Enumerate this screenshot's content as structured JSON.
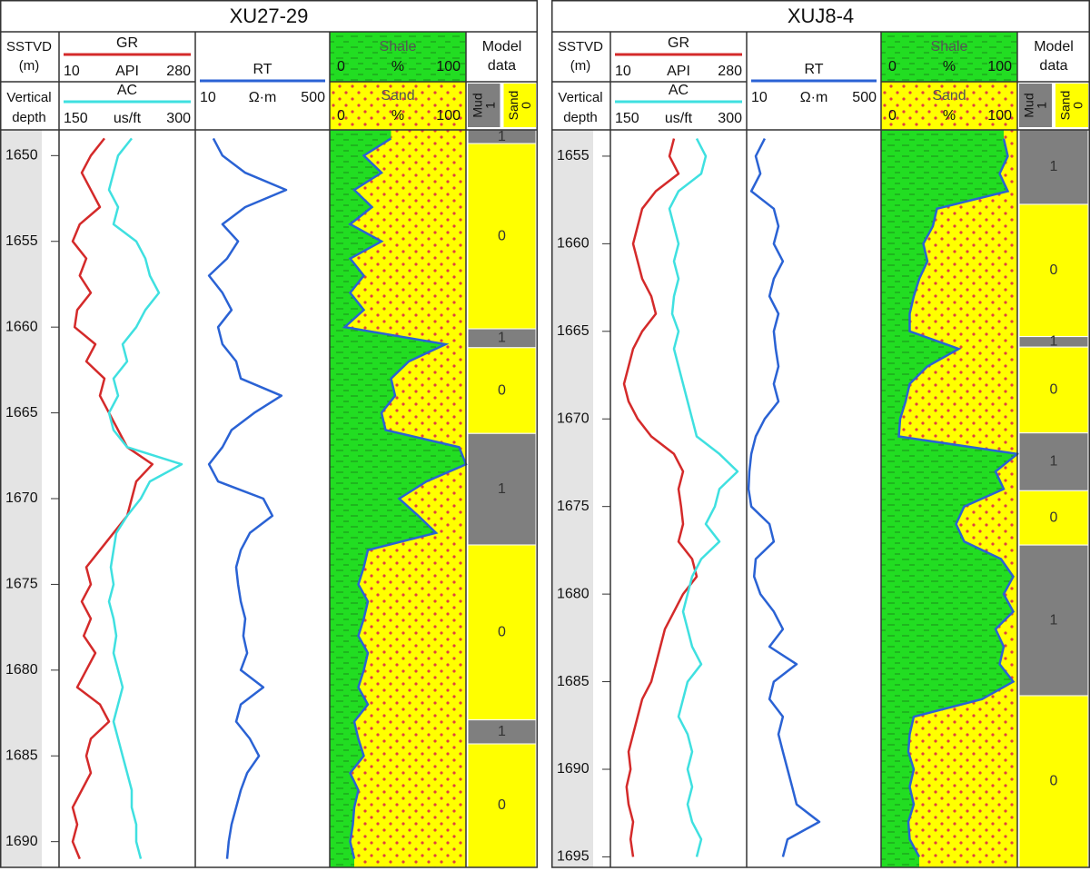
{
  "chart_data": [
    {
      "type": "well_log",
      "title": "XU27-29",
      "depth_header": [
        "SSTVD",
        "(m)"
      ],
      "depth_header2": [
        "Vertical",
        "depth"
      ],
      "ylim": [
        1648.5,
        1691.5
      ],
      "yticks": [
        1650,
        1655,
        1660,
        1665,
        1670,
        1675,
        1680,
        1685,
        1690
      ],
      "x": [
        1649,
        1650,
        1651,
        1652,
        1653,
        1654,
        1655,
        1656,
        1657,
        1658,
        1659,
        1660,
        1661,
        1662,
        1663,
        1664,
        1665,
        1666,
        1667,
        1668,
        1669,
        1670,
        1671,
        1672,
        1673,
        1674,
        1675,
        1676,
        1677,
        1678,
        1679,
        1680,
        1681,
        1682,
        1683,
        1684,
        1685,
        1686,
        1687,
        1688,
        1689,
        1690,
        1691
      ],
      "series": [
        {
          "name": "GR",
          "color": "#d42a2a",
          "unit": "API",
          "xlim": [
            10,
            280
          ],
          "values": [
            100,
            73,
            55,
            73,
            91,
            51,
            37,
            64,
            51,
            73,
            46,
            41,
            82,
            64,
            100,
            91,
            109,
            127,
            145,
            195,
            163,
            154,
            145,
            118,
            91,
            64,
            73,
            55,
            73,
            59,
            82,
            64,
            46,
            91,
            109,
            73,
            64,
            73,
            55,
            37,
            46,
            37,
            51
          ]
        },
        {
          "name": "AC",
          "color": "#3fe0e0",
          "unit": "us/ft",
          "xlim": [
            150,
            300
          ],
          "values": [
            230,
            215,
            210,
            205,
            215,
            210,
            235,
            245,
            250,
            260,
            245,
            235,
            220,
            225,
            210,
            215,
            205,
            210,
            225,
            285,
            250,
            240,
            225,
            213,
            210,
            207,
            210,
            205,
            210,
            213,
            210,
            215,
            220,
            215,
            210,
            215,
            220,
            225,
            230,
            230,
            235,
            235,
            240
          ]
        },
        {
          "name": "RT",
          "color": "#2a62d4",
          "unit": "Ω·m",
          "xlim": [
            10,
            500
          ],
          "values": [
            76,
            109,
            192,
            341,
            192,
            109,
            166,
            126,
            60,
            109,
            142,
            93,
            109,
            159,
            176,
            324,
            225,
            142,
            109,
            60,
            93,
            258,
            291,
            209,
            176,
            159,
            166,
            176,
            192,
            185,
            199,
            176,
            258,
            176,
            159,
            209,
            242,
            199,
            176,
            159,
            142,
            132,
            126
          ]
        }
      ],
      "lithology": {
        "shale": {
          "name": "Shale",
          "color": "#22dd22",
          "unit": "%",
          "xlim": [
            0,
            100
          ]
        },
        "sand": {
          "name": "Sand",
          "color": "#ffff00",
          "unit": "%",
          "xlim": [
            0,
            100
          ]
        },
        "line_color": "#2a62d4",
        "values": [
          45,
          25,
          38,
          18,
          31,
          15,
          38,
          15,
          25,
          15,
          25,
          11,
          85,
          58,
          45,
          48,
          38,
          41,
          95,
          100,
          71,
          51,
          65,
          78,
          28,
          25,
          21,
          28,
          25,
          21,
          28,
          25,
          21,
          28,
          18,
          21,
          25,
          15,
          21,
          18,
          17,
          15,
          18
        ]
      },
      "model": {
        "title": [
          "Model",
          "data"
        ],
        "classes": [
          {
            "name": "Mud",
            "value": 1,
            "color": "#7f7f7f"
          },
          {
            "name": "Sand",
            "value": 0,
            "color": "#ffff00"
          }
        ],
        "intervals": [
          {
            "top": 1648.5,
            "bottom": 1649.3,
            "value": 1
          },
          {
            "top": 1649.3,
            "bottom": 1660.1,
            "value": 0
          },
          {
            "top": 1660.1,
            "bottom": 1661.2,
            "value": 1
          },
          {
            "top": 1661.2,
            "bottom": 1666.2,
            "value": 0
          },
          {
            "top": 1666.2,
            "bottom": 1672.7,
            "value": 1
          },
          {
            "top": 1672.7,
            "bottom": 1682.9,
            "value": 0
          },
          {
            "top": 1682.9,
            "bottom": 1684.3,
            "value": 1
          },
          {
            "top": 1684.3,
            "bottom": 1691.5,
            "value": 0
          }
        ]
      }
    },
    {
      "type": "well_log",
      "title": "XUJ8-4",
      "depth_header": [
        "SSTVD",
        "(m)"
      ],
      "depth_header2": [
        "Vertical",
        "depth"
      ],
      "ylim": [
        1653.5,
        1695.6
      ],
      "yticks": [
        1655,
        1660,
        1665,
        1670,
        1675,
        1680,
        1685,
        1690,
        1695
      ],
      "x": [
        1654,
        1655,
        1656,
        1657,
        1658,
        1659,
        1660,
        1661,
        1662,
        1663,
        1664,
        1665,
        1666,
        1667,
        1668,
        1669,
        1670,
        1671,
        1672,
        1673,
        1674,
        1675,
        1676,
        1677,
        1678,
        1679,
        1680,
        1681,
        1682,
        1683,
        1684,
        1685,
        1686,
        1687,
        1688,
        1689,
        1690,
        1691,
        1692,
        1693,
        1694,
        1695
      ],
      "series": [
        {
          "name": "GR",
          "color": "#d42a2a",
          "unit": "API",
          "xlim": [
            10,
            280
          ],
          "values": [
            136,
            127,
            145,
            100,
            73,
            64,
            55,
            64,
            73,
            91,
            100,
            73,
            55,
            46,
            37,
            46,
            64,
            91,
            136,
            154,
            145,
            150,
            154,
            145,
            172,
            181,
            154,
            136,
            118,
            109,
            100,
            91,
            73,
            64,
            55,
            46,
            50,
            42,
            46,
            55,
            50,
            55
          ]
        },
        {
          "name": "AC",
          "color": "#3fe0e0",
          "unit": "us/ft",
          "xlim": [
            150,
            300
          ],
          "values": [
            245,
            255,
            250,
            225,
            215,
            220,
            225,
            220,
            225,
            220,
            218,
            225,
            220,
            225,
            230,
            235,
            240,
            245,
            270,
            290,
            270,
            265,
            255,
            270,
            250,
            240,
            235,
            230,
            235,
            240,
            250,
            235,
            230,
            225,
            235,
            240,
            235,
            240,
            235,
            240,
            250,
            245
          ]
        },
        {
          "name": "RT",
          "color": "#2a62d4",
          "unit": "Ω·m",
          "xlim": [
            10,
            500
          ],
          "values": [
            76,
            43,
            60,
            27,
            109,
            126,
            109,
            142,
            109,
            93,
            126,
            109,
            116,
            126,
            109,
            126,
            76,
            43,
            27,
            20,
            17,
            27,
            93,
            109,
            43,
            37,
            60,
            109,
            142,
            93,
            192,
            109,
            93,
            142,
            126,
            142,
            159,
            176,
            192,
            275,
            159,
            142
          ]
        }
      ],
      "lithology": {
        "shale": {
          "name": "Shale",
          "color": "#22dd22",
          "unit": "%",
          "xlim": [
            0,
            100
          ]
        },
        "sand": {
          "name": "Sand",
          "color": "#ffff00",
          "unit": "%",
          "xlim": [
            0,
            100
          ]
        },
        "line_color": "#2a62d4",
        "values": [
          90,
          93,
          87,
          93,
          41,
          38,
          31,
          34,
          28,
          24,
          21,
          21,
          57,
          34,
          21,
          18,
          14,
          13,
          100,
          84,
          90,
          61,
          55,
          61,
          88,
          97,
          90,
          97,
          84,
          90,
          87,
          97,
          74,
          24,
          21,
          20,
          24,
          21,
          24,
          20,
          21,
          28
        ]
      },
      "model": {
        "title": [
          "Model",
          "data"
        ],
        "classes": [
          {
            "name": "Mud",
            "value": 1,
            "color": "#7f7f7f"
          },
          {
            "name": "Sand",
            "value": 0,
            "color": "#ffff00"
          }
        ],
        "intervals": [
          {
            "top": 1653.5,
            "bottom": 1657.75,
            "value": 1
          },
          {
            "top": 1657.75,
            "bottom": 1665.3,
            "value": 0
          },
          {
            "top": 1665.3,
            "bottom": 1665.9,
            "value": 1
          },
          {
            "top": 1665.9,
            "bottom": 1670.8,
            "value": 0
          },
          {
            "top": 1670.8,
            "bottom": 1674.1,
            "value": 1
          },
          {
            "top": 1674.1,
            "bottom": 1677.2,
            "value": 0
          },
          {
            "top": 1677.2,
            "bottom": 1685.8,
            "value": 1
          },
          {
            "top": 1685.8,
            "bottom": 1695.6,
            "value": 0
          }
        ]
      }
    }
  ]
}
